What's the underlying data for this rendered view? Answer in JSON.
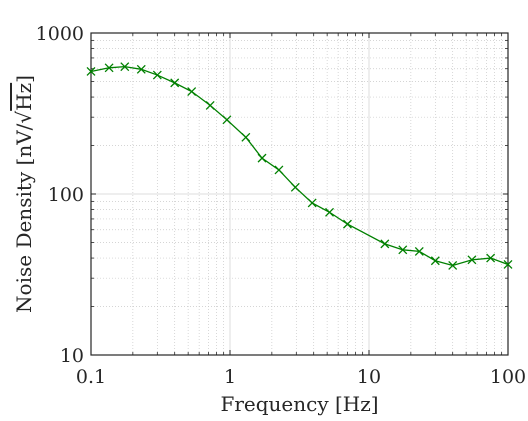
{
  "chart_data": {
    "type": "line",
    "xlabel": "Frequency [Hz]",
    "ylabel_prefix": "Noise Density [nV/",
    "ylabel_radicand": "Hz",
    "ylabel_suffix": "]",
    "xscale": "log",
    "yscale": "log",
    "xlim": [
      0.1,
      100
    ],
    "ylim": [
      10,
      1000
    ],
    "grid": true,
    "minor_grid": true,
    "x_ticks": [
      0.1,
      1,
      10,
      100
    ],
    "x_tick_labels": [
      "0.1",
      "1",
      "10",
      "100"
    ],
    "y_ticks": [
      10,
      100,
      1000
    ],
    "y_tick_labels": [
      "10",
      "100",
      "1000"
    ],
    "series": [
      {
        "color": "#008000",
        "marker": "x",
        "x": [
          0.1,
          0.135,
          0.175,
          0.23,
          0.3,
          0.4,
          0.53,
          0.72,
          0.95,
          1.3,
          1.7,
          2.25,
          2.95,
          3.9,
          5.2,
          7.0,
          13.0,
          17.5,
          23.0,
          30.0,
          40.0,
          55.0,
          75.0,
          100.0
        ],
        "y": [
          577,
          608,
          618,
          595,
          548,
          490,
          433,
          355,
          289,
          225,
          167,
          141,
          110,
          88,
          77,
          65,
          49,
          45,
          44,
          38.5,
          36,
          39,
          40,
          36.5
        ]
      }
    ]
  }
}
